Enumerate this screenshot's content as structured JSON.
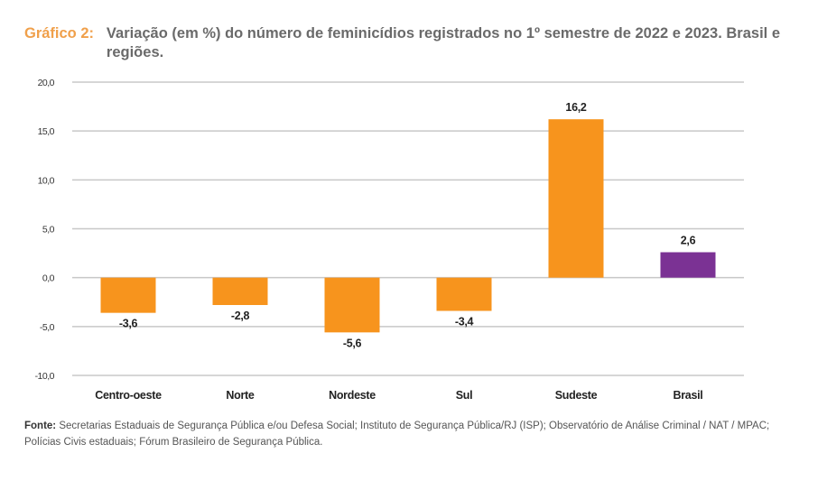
{
  "title": {
    "label": "Gráfico 2:",
    "text": "Variação (em %) do número de feminicídios registrados no 1º semestre de 2022 e 2023. Brasil e regiões."
  },
  "source": {
    "label": "Fonte:",
    "text": "Secretarias Estaduais de Segurança Pública e/ou Defesa Social; Instituto de Segurança Pública/RJ (ISP); Observatório de Análise Criminal / NAT / MPAC; Polícias Civis estaduais; Fórum Brasileiro de Segurança Pública."
  },
  "colors": {
    "regions": "#f7941d",
    "brasil": "#7b3294",
    "grid": "#c8c8c8",
    "title_accent": "#f0a04b"
  },
  "chart_data": {
    "type": "bar",
    "title": "Variação (em %) do número de feminicídios registrados no 1º semestre de 2022 e 2023. Brasil e regiões.",
    "xlabel": "",
    "ylabel": "",
    "categories": [
      "Centro-oeste",
      "Norte",
      "Nordeste",
      "Sul",
      "Sudeste",
      "Brasil"
    ],
    "values": [
      -3.6,
      -2.8,
      -5.6,
      -3.4,
      16.2,
      2.6
    ],
    "value_labels": [
      "-3,6",
      "-2,8",
      "-5,6",
      "-3,4",
      "16,2",
      "2,6"
    ],
    "bar_colors": [
      "#f7941d",
      "#f7941d",
      "#f7941d",
      "#f7941d",
      "#f7941d",
      "#7b3294"
    ],
    "ylim": [
      -10,
      20
    ],
    "yticks": [
      20,
      15,
      10,
      5,
      0,
      -5,
      -10
    ],
    "ytick_labels": [
      "20,0",
      "15,0",
      "10,0",
      "5,0",
      "0,0",
      "-5,0",
      "-10,0"
    ],
    "grid": true,
    "legend": "none"
  }
}
